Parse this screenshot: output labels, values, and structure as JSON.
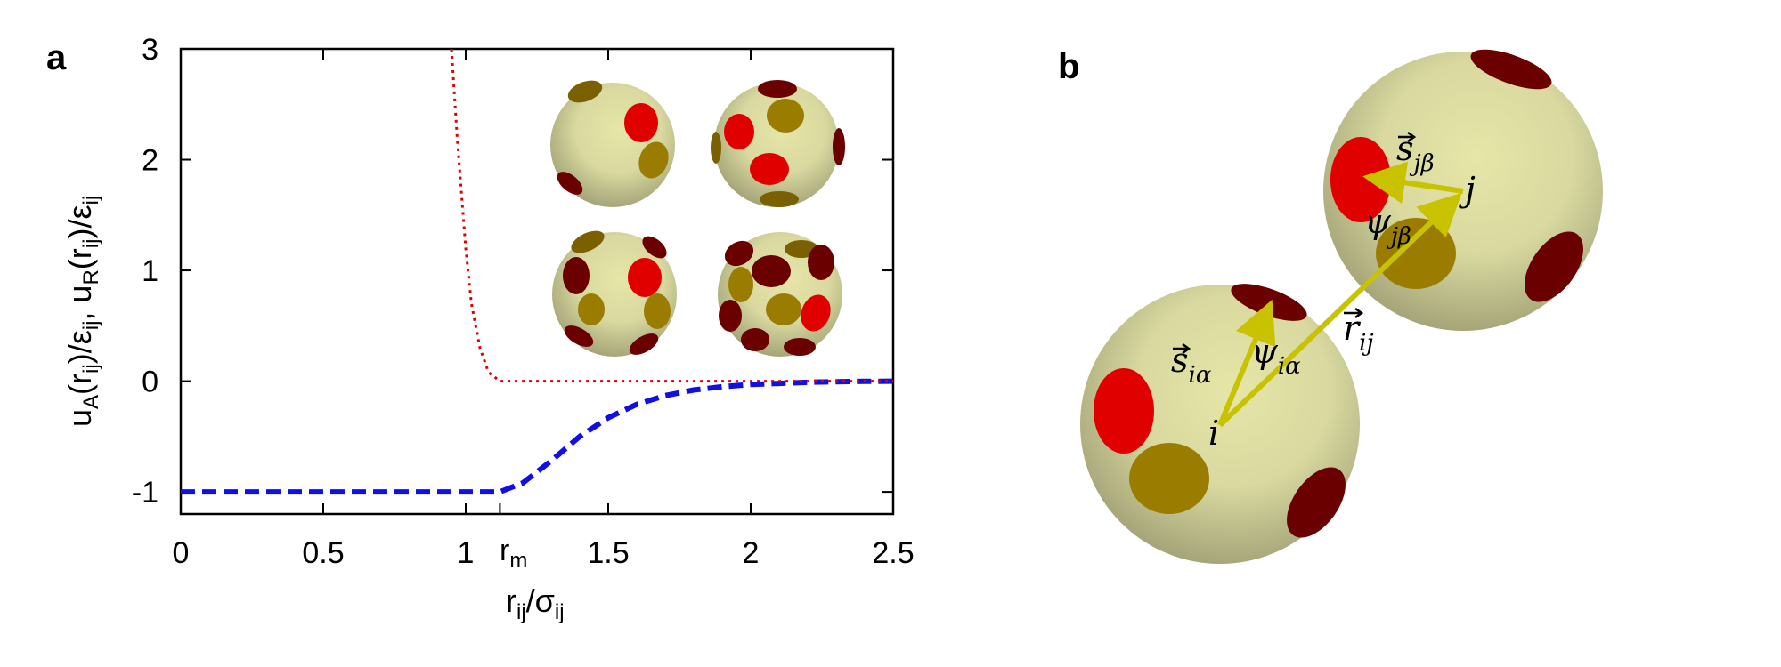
{
  "panels": {
    "a": "a",
    "b": "b"
  },
  "colors": {
    "attractive": "#1010e6",
    "repulsive": "#e00000",
    "sphere": "#d9d9a0",
    "patch_red": "#e00000",
    "patch_dark": "#6b0000",
    "patch_olive": "#9a7d00",
    "vector": "#c8c200"
  },
  "chart_data": {
    "type": "line",
    "xlim": [
      0,
      2.5
    ],
    "ylim": [
      -1.2,
      3
    ],
    "xticks": [
      "0",
      "0.5",
      "1",
      "1.5",
      "2",
      "2.5"
    ],
    "xtick_values": [
      0,
      0.5,
      1,
      1.5,
      2,
      2.5
    ],
    "yticks": [
      "-1",
      "0",
      "1",
      "2",
      "3"
    ],
    "ytick_values": [
      -1,
      0,
      1,
      2,
      3
    ],
    "rm_tick": {
      "value": 1.12,
      "label": "r",
      "sub": "m"
    },
    "xlabel": {
      "main": "r",
      "sub1": "ij",
      "mid": "/σ",
      "sub2": "ij"
    },
    "ylabel": {
      "p1": "u",
      "p1sub": "A",
      "p2": "(r",
      "p2sub": "ij",
      "p3": ")/ε",
      "p3sub": "ij",
      "p4": ",  u",
      "p4sub": "R",
      "p5": "(r",
      "p5sub": "ij",
      "p6": ")/ε",
      "p6sub": "ij"
    },
    "grid": false,
    "series": [
      {
        "style": "dashed",
        "x": [
          0,
          0.2,
          0.4,
          0.6,
          0.8,
          1.0,
          1.12,
          1.2,
          1.3,
          1.4,
          1.5,
          1.6,
          1.7,
          1.8,
          1.9,
          2.0,
          2.1,
          2.2,
          2.3,
          2.4,
          2.5
        ],
        "y": [
          -1,
          -1,
          -1,
          -1,
          -1,
          -1,
          -1,
          -0.92,
          -0.72,
          -0.5,
          -0.33,
          -0.21,
          -0.13,
          -0.08,
          -0.05,
          -0.03,
          -0.02,
          -0.01,
          -0.005,
          -0.002,
          0
        ]
      },
      {
        "style": "dotted",
        "x": [
          0.95,
          0.97,
          1.0,
          1.02,
          1.05,
          1.08,
          1.12,
          1.3,
          1.6,
          2.0,
          2.5
        ],
        "y": [
          3.0,
          2.2,
          1.2,
          0.7,
          0.3,
          0.08,
          0,
          0,
          0,
          0,
          0
        ]
      }
    ]
  },
  "diagram_b": {
    "labels": {
      "i": "i",
      "j": "j",
      "r": "r",
      "r_sub": "ij",
      "s_i": "s",
      "s_i_sub": "iα",
      "s_j": "s",
      "s_j_sub": "jβ",
      "psi_i": "ψ",
      "psi_i_sub": "iα",
      "psi_j": "ψ",
      "psi_j_sub": "jβ"
    }
  }
}
